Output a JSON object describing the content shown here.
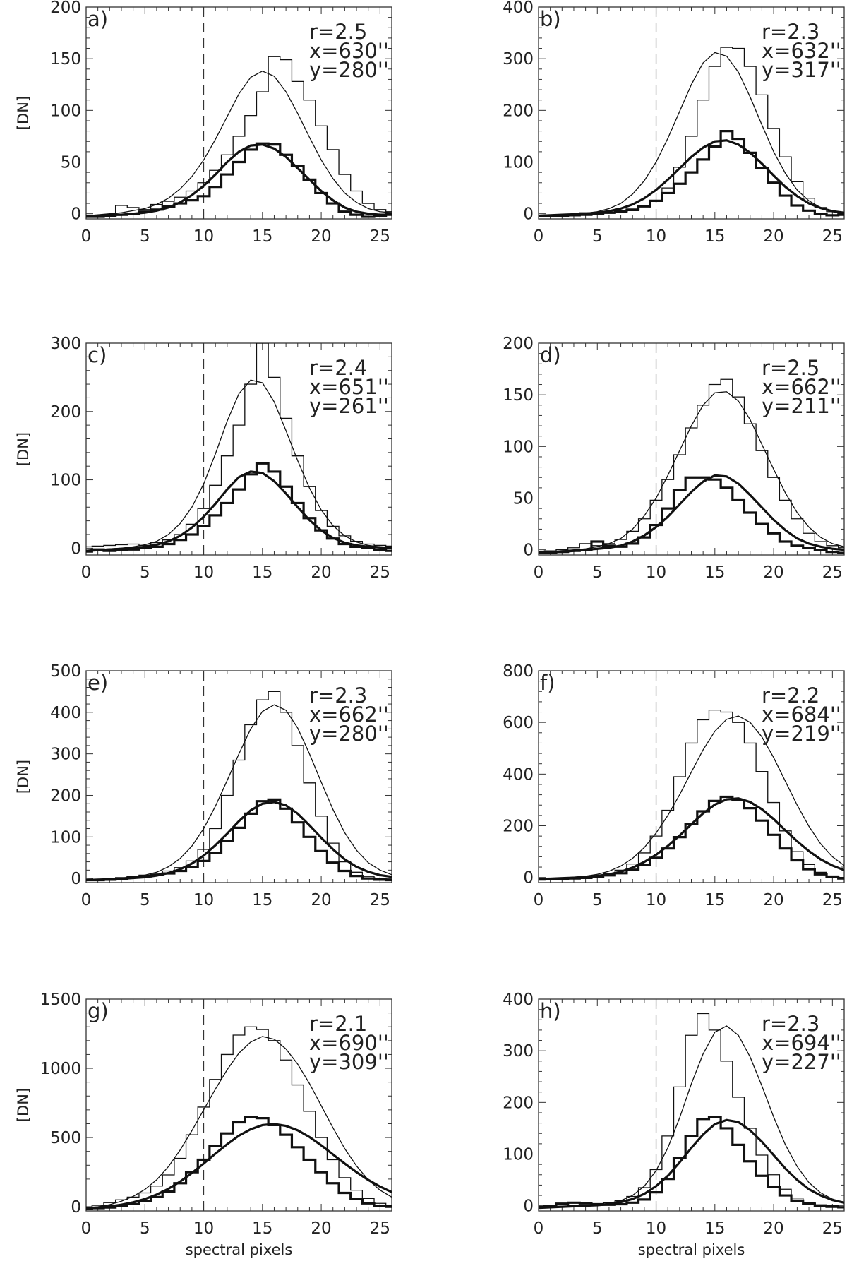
{
  "figure": {
    "ylabel": "[DN]",
    "xlabel": "spectral pixels",
    "x_ticks": [
      0,
      5,
      10,
      15,
      20,
      25
    ],
    "x_range": [
      0,
      26
    ],
    "dashed_line_x": 10
  },
  "chart_data": [
    {
      "type": "line",
      "panel": "a)",
      "annotation": [
        "r=2.5",
        "x=630''",
        "y=280''"
      ],
      "ylim": [
        -5,
        200
      ],
      "yticks": [
        0,
        50,
        100,
        150,
        200
      ],
      "series": [
        {
          "style": "thin-step",
          "values": [
            -3,
            -2,
            -1,
            8,
            6,
            4,
            9,
            12,
            16,
            22,
            30,
            42,
            57,
            75,
            95,
            118,
            152,
            149,
            128,
            110,
            85,
            62,
            38,
            22,
            10,
            4,
            2
          ]
        },
        {
          "style": "thin-fit",
          "values": [
            -2,
            -1,
            0,
            1,
            3,
            5,
            9,
            15,
            24,
            36,
            52,
            72,
            94,
            116,
            132,
            138,
            133,
            118,
            97,
            74,
            52,
            34,
            20,
            11,
            5,
            2,
            1
          ]
        },
        {
          "style": "thick-step",
          "values": [
            -3,
            -3,
            -2,
            -1,
            0,
            2,
            4,
            7,
            10,
            13,
            17,
            26,
            38,
            50,
            62,
            68,
            67,
            57,
            46,
            33,
            20,
            10,
            2,
            -1,
            -3,
            -2,
            0
          ]
        },
        {
          "style": "thick-fit",
          "values": [
            -2,
            -2,
            -1,
            -1,
            0,
            1,
            3,
            6,
            11,
            18,
            27,
            38,
            50,
            60,
            66,
            67,
            63,
            55,
            44,
            33,
            22,
            13,
            6,
            2,
            0,
            -1,
            -1
          ]
        }
      ]
    },
    {
      "type": "line",
      "panel": "b)",
      "annotation": [
        "r=2.3",
        "x=632''",
        "y=317''"
      ],
      "ylim": [
        -10,
        400
      ],
      "yticks": [
        0,
        100,
        200,
        300,
        400
      ],
      "series": [
        {
          "style": "thin-step",
          "values": [
            -3,
            -3,
            -2,
            -1,
            2,
            0,
            1,
            3,
            6,
            12,
            25,
            50,
            90,
            150,
            220,
            285,
            322,
            320,
            285,
            230,
            165,
            110,
            62,
            30,
            12,
            4,
            0
          ]
        },
        {
          "style": "thin-fit",
          "values": [
            -4,
            -3,
            -2,
            -1,
            1,
            4,
            10,
            20,
            38,
            64,
            100,
            146,
            198,
            250,
            292,
            312,
            305,
            274,
            226,
            172,
            120,
            78,
            46,
            25,
            12,
            5,
            2
          ]
        },
        {
          "style": "thick-step",
          "values": [
            -5,
            -5,
            -4,
            -3,
            -2,
            0,
            2,
            5,
            8,
            15,
            25,
            40,
            58,
            80,
            105,
            130,
            160,
            145,
            118,
            88,
            60,
            35,
            16,
            6,
            0,
            -3,
            -2
          ]
        },
        {
          "style": "thick-fit",
          "values": [
            -4,
            -3,
            -2,
            -1,
            0,
            2,
            5,
            10,
            18,
            30,
            46,
            66,
            88,
            110,
            128,
            140,
            142,
            134,
            118,
            97,
            74,
            52,
            34,
            20,
            11,
            5,
            2
          ]
        }
      ]
    },
    {
      "type": "line",
      "panel": "c)",
      "annotation": [
        "r=2.4",
        "x=651''",
        "y=261''"
      ],
      "ylim": [
        -10,
        300
      ],
      "yticks": [
        0,
        100,
        200,
        300
      ],
      "series": [
        {
          "style": "thin-step",
          "values": [
            2,
            3,
            4,
            5,
            6,
            4,
            8,
            12,
            20,
            35,
            58,
            92,
            135,
            180,
            240,
            300,
            250,
            190,
            135,
            90,
            55,
            32,
            18,
            10,
            6,
            4,
            3
          ]
        },
        {
          "style": "thin-fit",
          "values": [
            -3,
            -2,
            -1,
            0,
            2,
            5,
            10,
            20,
            36,
            60,
            94,
            138,
            186,
            226,
            246,
            242,
            214,
            172,
            128,
            88,
            56,
            33,
            18,
            9,
            4,
            2,
            1
          ]
        },
        {
          "style": "thick-step",
          "values": [
            -5,
            -2,
            -4,
            -3,
            -2,
            0,
            2,
            6,
            12,
            20,
            32,
            48,
            66,
            86,
            108,
            124,
            112,
            90,
            66,
            44,
            26,
            14,
            6,
            2,
            0,
            -3,
            -4
          ]
        },
        {
          "style": "thick-fit",
          "values": [
            -4,
            -3,
            -2,
            -1,
            0,
            2,
            5,
            10,
            18,
            30,
            46,
            65,
            86,
            104,
            112,
            110,
            98,
            80,
            60,
            41,
            26,
            15,
            8,
            4,
            2,
            1,
            0
          ]
        }
      ]
    },
    {
      "type": "line",
      "panel": "d)",
      "annotation": [
        "r=2.5",
        "x=662''",
        "y=211''"
      ],
      "ylim": [
        -5,
        200
      ],
      "yticks": [
        0,
        50,
        100,
        150,
        200
      ],
      "series": [
        {
          "style": "thin-step",
          "values": [
            -2,
            -1,
            0,
            2,
            6,
            4,
            6,
            10,
            18,
            30,
            48,
            68,
            92,
            118,
            140,
            160,
            165,
            148,
            122,
            96,
            70,
            48,
            30,
            16,
            8,
            4,
            2
          ]
        },
        {
          "style": "thin-fit",
          "values": [
            -3,
            -2,
            -1,
            0,
            1,
            3,
            6,
            11,
            20,
            33,
            50,
            72,
            96,
            120,
            140,
            152,
            153,
            144,
            126,
            102,
            78,
            55,
            36,
            22,
            12,
            6,
            3
          ]
        },
        {
          "style": "thick-step",
          "values": [
            -2,
            -3,
            -2,
            -1,
            0,
            8,
            4,
            3,
            6,
            12,
            24,
            40,
            58,
            70,
            70,
            68,
            60,
            48,
            36,
            25,
            16,
            8,
            4,
            2,
            0,
            -2,
            -3
          ]
        },
        {
          "style": "thick-fit",
          "values": [
            -3,
            -2,
            -2,
            -1,
            0,
            1,
            2,
            4,
            8,
            14,
            22,
            32,
            44,
            56,
            66,
            72,
            71,
            64,
            53,
            41,
            29,
            19,
            11,
            6,
            3,
            1,
            0
          ]
        }
      ]
    },
    {
      "type": "line",
      "panel": "e)",
      "annotation": [
        "r=2.3",
        "x=662''",
        "y=280''"
      ],
      "ylim": [
        -10,
        500
      ],
      "yticks": [
        0,
        100,
        200,
        300,
        400,
        500
      ],
      "series": [
        {
          "style": "thin-step",
          "values": [
            -3,
            -2,
            0,
            2,
            5,
            8,
            12,
            18,
            26,
            42,
            70,
            120,
            200,
            285,
            370,
            430,
            450,
            400,
            320,
            230,
            150,
            85,
            40,
            15,
            5,
            0,
            -2
          ]
        },
        {
          "style": "thin-fit",
          "values": [
            -3,
            -2,
            -1,
            1,
            4,
            8,
            15,
            28,
            48,
            78,
            120,
            174,
            236,
            300,
            360,
            402,
            418,
            405,
            362,
            300,
            232,
            166,
            110,
            68,
            38,
            20,
            9
          ]
        },
        {
          "style": "thick-step",
          "values": [
            -4,
            -4,
            -3,
            -1,
            2,
            5,
            8,
            12,
            18,
            28,
            42,
            62,
            90,
            122,
            156,
            186,
            190,
            168,
            135,
            100,
            66,
            38,
            18,
            6,
            0,
            -3,
            -4
          ]
        },
        {
          "style": "thick-fit",
          "values": [
            -4,
            -3,
            -2,
            -1,
            1,
            3,
            7,
            13,
            22,
            36,
            55,
            80,
            108,
            138,
            164,
            180,
            184,
            176,
            156,
            128,
            98,
            70,
            46,
            28,
            16,
            8,
            4
          ]
        }
      ]
    },
    {
      "type": "line",
      "panel": "f)",
      "annotation": [
        "r=2.2",
        "x=684''",
        "y=219''"
      ],
      "ylim": [
        -20,
        800
      ],
      "yticks": [
        0,
        200,
        400,
        600,
        800
      ],
      "series": [
        {
          "style": "thin-step",
          "values": [
            -8,
            -6,
            -4,
            -2,
            2,
            6,
            14,
            28,
            52,
            95,
            160,
            260,
            390,
            520,
            610,
            648,
            640,
            600,
            520,
            410,
            290,
            180,
            100,
            50,
            20,
            6,
            0
          ]
        },
        {
          "style": "thin-fit",
          "values": [
            -6,
            -4,
            -2,
            1,
            5,
            12,
            24,
            44,
            74,
            116,
            172,
            240,
            320,
            408,
            494,
            566,
            612,
            625,
            600,
            544,
            464,
            372,
            280,
            198,
            130,
            80,
            46
          ]
        },
        {
          "style": "thick-step",
          "values": [
            -8,
            -7,
            -6,
            -4,
            -2,
            2,
            8,
            16,
            30,
            48,
            76,
            112,
            156,
            206,
            256,
            296,
            312,
            300,
            268,
            220,
            165,
            112,
            66,
            32,
            12,
            2,
            -4
          ]
        },
        {
          "style": "thick-fit",
          "values": [
            -6,
            -5,
            -3,
            -1,
            2,
            6,
            12,
            22,
            38,
            60,
            88,
            122,
            162,
            206,
            248,
            282,
            302,
            306,
            292,
            264,
            226,
            182,
            140,
            102,
            70,
            46,
            28
          ]
        }
      ]
    },
    {
      "type": "line",
      "panel": "g)",
      "annotation": [
        "r=2.1",
        "x=690''",
        "y=309''"
      ],
      "ylim": [
        -30,
        1500
      ],
      "yticks": [
        0,
        500,
        1000,
        1500
      ],
      "series": [
        {
          "style": "thin-step",
          "values": [
            0,
            10,
            30,
            50,
            70,
            100,
            150,
            230,
            350,
            520,
            720,
            920,
            1100,
            1240,
            1300,
            1280,
            1200,
            1060,
            880,
            690,
            500,
            340,
            210,
            120,
            60,
            25,
            10
          ]
        },
        {
          "style": "thin-fit",
          "values": [
            -10,
            0,
            15,
            40,
            75,
            125,
            195,
            290,
            410,
            550,
            700,
            850,
            990,
            1110,
            1190,
            1230,
            1210,
            1140,
            1030,
            890,
            730,
            570,
            420,
            295,
            195,
            120,
            70
          ]
        },
        {
          "style": "thick-step",
          "values": [
            -15,
            -10,
            -5,
            5,
            20,
            40,
            70,
            110,
            170,
            250,
            340,
            440,
            530,
            610,
            650,
            640,
            590,
            520,
            430,
            340,
            250,
            170,
            100,
            55,
            25,
            8,
            0
          ]
        },
        {
          "style": "thick-fit",
          "values": [
            -10,
            -5,
            3,
            15,
            32,
            56,
            88,
            130,
            182,
            244,
            312,
            384,
            452,
            514,
            560,
            590,
            598,
            584,
            552,
            504,
            444,
            378,
            312,
            250,
            194,
            146,
            106
          ]
        }
      ]
    },
    {
      "type": "line",
      "panel": "h)",
      "annotation": [
        "r=2.3",
        "x=694''",
        "y=227''"
      ],
      "ylim": [
        -10,
        400
      ],
      "yticks": [
        0,
        100,
        200,
        300,
        400
      ],
      "series": [
        {
          "style": "thin-step",
          "values": [
            -3,
            -2,
            -1,
            0,
            2,
            4,
            6,
            10,
            18,
            35,
            70,
            135,
            230,
            330,
            372,
            340,
            280,
            210,
            150,
            98,
            60,
            32,
            15,
            6,
            2,
            0,
            -2
          ]
        },
        {
          "style": "thin-fit",
          "values": [
            -4,
            -3,
            -2,
            -1,
            0,
            2,
            5,
            10,
            20,
            38,
            68,
            112,
            170,
            236,
            294,
            336,
            348,
            330,
            288,
            232,
            172,
            118,
            76,
            45,
            25,
            13,
            6
          ]
        },
        {
          "style": "thick-step",
          "values": [
            -2,
            0,
            4,
            6,
            5,
            3,
            2,
            3,
            6,
            12,
            26,
            52,
            92,
            135,
            168,
            172,
            150,
            118,
            86,
            58,
            36,
            20,
            10,
            4,
            0,
            -2,
            -3
          ]
        },
        {
          "style": "thick-fit",
          "values": [
            -4,
            -3,
            -2,
            -1,
            0,
            1,
            3,
            7,
            13,
            23,
            38,
            58,
            84,
            112,
            138,
            158,
            166,
            162,
            146,
            124,
            98,
            72,
            50,
            32,
            20,
            11,
            6
          ]
        }
      ]
    }
  ]
}
